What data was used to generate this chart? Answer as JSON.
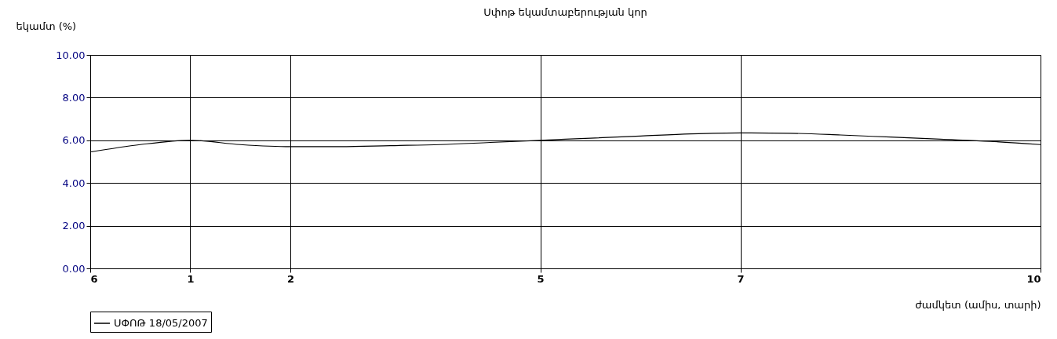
{
  "chart_data": {
    "type": "line",
    "title": "Սփոթ եկամտաբերության կոր",
    "ylabel": "եկամտ (%)",
    "xlabel": "ժամկետ (ամիս, տարի)",
    "categories": [
      "6",
      null,
      "1",
      null,
      "2",
      null,
      null,
      null,
      null,
      "5",
      null,
      null,
      null,
      "7",
      null,
      null,
      null,
      null,
      null,
      "10"
    ],
    "series": [
      {
        "name": "ՍՓՈԹ 18/05/2007",
        "color": "#000000",
        "values": [
          5.45,
          5.8,
          6.0,
          5.8,
          5.7,
          5.7,
          5.75,
          5.8,
          5.9,
          6.0,
          6.1,
          6.2,
          6.3,
          6.35,
          6.33,
          6.25,
          6.15,
          6.05,
          5.95,
          5.8
        ]
      }
    ],
    "ylim": [
      0,
      10
    ],
    "yticks": [
      {
        "value": 0,
        "label": "0.00"
      },
      {
        "value": 2,
        "label": "2.00"
      },
      {
        "value": 4,
        "label": "4.00"
      },
      {
        "value": 6,
        "label": "6.00"
      },
      {
        "value": 8,
        "label": "8.00"
      },
      {
        "value": 10,
        "label": "10.00"
      }
    ],
    "grid": true,
    "legend": "bottom",
    "marker": "none",
    "line_style": "solid"
  }
}
